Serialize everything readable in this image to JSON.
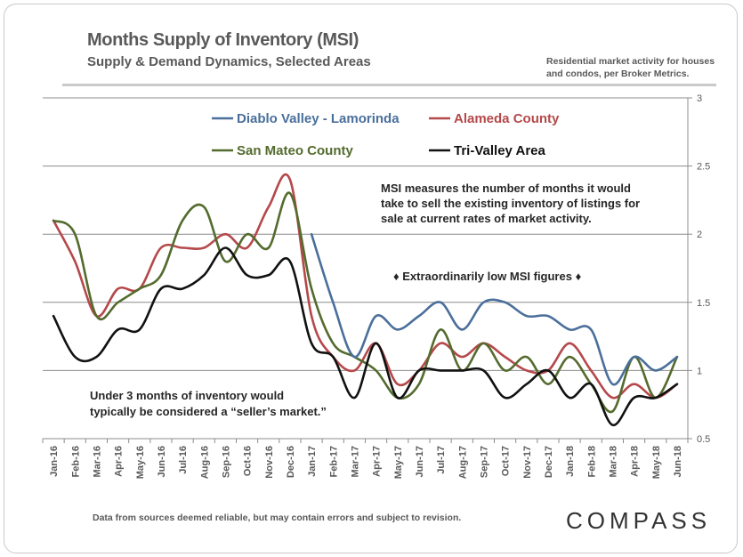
{
  "header": {
    "title": "Months Supply of Inventory (MSI)",
    "subtitle": "Supply & Demand Dynamics, Selected Areas",
    "note": "Residential market activity for houses and condos, per Broker Metrics."
  },
  "footer": {
    "disclaimer": "Data from sources deemed reliable, but may contain errors and subject to revision.",
    "brand": "COMPASS"
  },
  "annotations": {
    "msi_note_1": "MSI measures the number of months it would",
    "msi_note_2": "take to sell the existing inventory of listings for",
    "msi_note_3": "sale at current rates of market activity.",
    "low_msi": "♦  Extraordinarily low MSI figures  ♦",
    "sellers_1": "Under  3  months  of  inventory  would",
    "sellers_2": "typically be considered a “seller’s market.”"
  },
  "chart_data": {
    "type": "line",
    "title": "Months Supply of Inventory (MSI)",
    "xlabel": "",
    "ylabel": "",
    "ylim": [
      0.5,
      3
    ],
    "yticks": [
      "0.5",
      "1",
      "1.5",
      "2",
      "2.5",
      "3"
    ],
    "ytick_values": [
      0.5,
      1,
      1.5,
      2,
      2.5,
      3
    ],
    "grid": true,
    "legend_position": "top",
    "categories": [
      "Jan-16",
      "Feb-16",
      "Mar-16",
      "Apr-16",
      "May-16",
      "Jun-16",
      "Jul-16",
      "Aug-16",
      "Sep-16",
      "Oct-16",
      "Nov-16",
      "Dec-16",
      "Jan-17",
      "Feb-17",
      "Mar-17",
      "Apr-17",
      "May-17",
      "Jun-17",
      "Jul-17",
      "Aug-17",
      "Sep-17",
      "Oct-17",
      "Nov-17",
      "Dec-17",
      "Jan-18",
      "Feb-18",
      "Mar-18",
      "Apr-18",
      "May-18",
      "Jun-18"
    ],
    "series": [
      {
        "name": "Diablo Valley - Lamorinda",
        "color": "#4a6f9b",
        "values": [
          null,
          null,
          null,
          null,
          null,
          null,
          null,
          null,
          null,
          null,
          null,
          null,
          2.0,
          1.5,
          1.1,
          1.4,
          1.3,
          1.4,
          1.5,
          1.3,
          1.5,
          1.5,
          1.4,
          1.4,
          1.3,
          1.3,
          0.9,
          1.1,
          1.0,
          1.1
        ]
      },
      {
        "name": "Alameda County",
        "color": "#b5484a",
        "values": [
          2.1,
          1.8,
          1.4,
          1.6,
          1.6,
          1.9,
          1.9,
          1.9,
          2.0,
          1.9,
          2.2,
          2.4,
          1.4,
          1.1,
          1.0,
          1.2,
          0.9,
          1.0,
          1.2,
          1.1,
          1.2,
          1.1,
          1.0,
          1.0,
          1.2,
          1.0,
          0.8,
          0.9,
          0.8,
          0.9
        ]
      },
      {
        "name": "San Mateo County",
        "color": "#546b2e",
        "values": [
          2.1,
          2.0,
          1.4,
          1.5,
          1.6,
          1.7,
          2.1,
          2.2,
          1.8,
          2.0,
          1.9,
          2.3,
          1.6,
          1.2,
          1.1,
          1.0,
          0.8,
          0.9,
          1.3,
          1.0,
          1.2,
          1.0,
          1.1,
          0.9,
          1.1,
          0.9,
          0.7,
          1.1,
          0.8,
          1.1
        ]
      },
      {
        "name": "Tri-Valley Area",
        "color": "#111111",
        "values": [
          1.4,
          1.1,
          1.1,
          1.3,
          1.3,
          1.6,
          1.6,
          1.7,
          1.9,
          1.7,
          1.7,
          1.8,
          1.2,
          1.1,
          0.8,
          1.2,
          0.8,
          1.0,
          1.0,
          1.0,
          1.0,
          0.8,
          0.9,
          1.0,
          0.8,
          0.9,
          0.6,
          0.8,
          0.8,
          0.9
        ]
      }
    ]
  }
}
